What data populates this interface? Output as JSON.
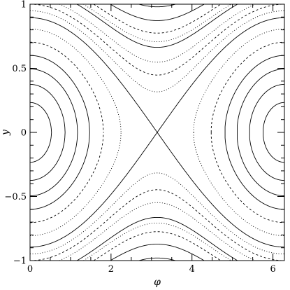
{
  "chart_data": {
    "type": "line",
    "title": "",
    "xlabel": "φ",
    "ylabel": "y",
    "xlim": [
      0,
      6.2832
    ],
    "ylim": [
      -1,
      1
    ],
    "x_ticks": [
      0,
      2,
      4,
      6
    ],
    "x_tick_labels": [
      "0",
      "2",
      "4",
      "6"
    ],
    "y_ticks": [
      -1,
      -0.5,
      0,
      0.5,
      1
    ],
    "y_tick_labels": [
      "−1",
      "−0.5",
      "0",
      "0.5",
      "1"
    ],
    "grid": false,
    "legend": "none",
    "line_color": "#000000",
    "description_of_curves": "contours of H = y^2 - A*cos(phi)",
    "pendulum_amplitude": 0.4,
    "separatrix_level": 0.4,
    "series": [
      {
        "level": -0.3456,
        "style": "solid"
      },
      {
        "level": -0.2596,
        "style": "solid"
      },
      {
        "level": -0.1552,
        "style": "solid"
      },
      {
        "level": -0.04,
        "style": "solid"
      },
      {
        "level": 0.095,
        "style": "dashed"
      },
      {
        "level": 0.25,
        "style": "dotted"
      },
      {
        "level": 0.4,
        "style": "solid"
      },
      {
        "level": 0.5,
        "style": "dotted"
      },
      {
        "level": 0.6,
        "style": "dashed"
      },
      {
        "level": 0.7,
        "style": "dotted"
      },
      {
        "level": 0.84,
        "style": "solid"
      },
      {
        "level": 0.9,
        "style": "dotted"
      },
      {
        "level": 1.0,
        "style": "dashed"
      },
      {
        "level": 1.16,
        "style": "solid"
      },
      {
        "level": 1.36,
        "style": "solid"
      }
    ]
  }
}
